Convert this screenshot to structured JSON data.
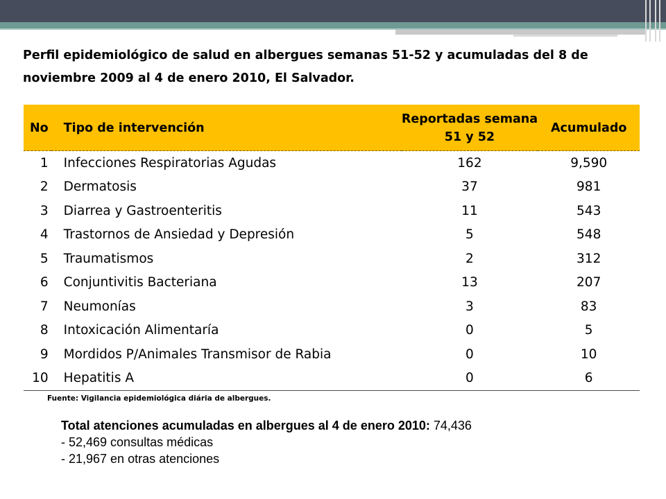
{
  "title": "Perfil epidemiológico de salud en albergues semanas 51-52 y acumuladas del 8 de noviembre 2009 al 4 de enero 2010, El Salvador.",
  "table": {
    "headers": {
      "no": "No",
      "tipo": "Tipo de intervención",
      "reportadas": "Reportadas semana 51 y 52",
      "acumulado": "Acumulado"
    },
    "rows": [
      {
        "no": "1",
        "tipo": "Infecciones Respiratorias Agudas",
        "reportadas": "162",
        "acumulado": "9,590"
      },
      {
        "no": "2",
        "tipo": "Dermatosis",
        "reportadas": "37",
        "acumulado": "981"
      },
      {
        "no": "3",
        "tipo": "Diarrea y Gastroenteritis",
        "reportadas": "11",
        "acumulado": "543"
      },
      {
        "no": "4",
        "tipo": "Trastornos de Ansiedad y Depresión",
        "reportadas": "5",
        "acumulado": "548"
      },
      {
        "no": "5",
        "tipo": "Traumatismos",
        "reportadas": "2",
        "acumulado": "312"
      },
      {
        "no": "6",
        "tipo": "Conjuntivitis Bacteriana",
        "reportadas": "13",
        "acumulado": "207"
      },
      {
        "no": "7",
        "tipo": "Neumonías",
        "reportadas": "3",
        "acumulado": "83"
      },
      {
        "no": "8",
        "tipo": "Intoxicación Alimentaría",
        "reportadas": "0",
        "acumulado": "5"
      },
      {
        "no": "9",
        "tipo": "Mordidos P/Animales Transmisor de Rabia",
        "reportadas": "0",
        "acumulado": "10"
      },
      {
        "no": "10",
        "tipo": "Hepatitis A",
        "reportadas": "0",
        "acumulado": "6"
      }
    ]
  },
  "fuente": "Fuente: Vigilancia epidemiológica diária de albergues.",
  "total": {
    "lead": "Total atenciones acumuladas en albergues al 4 de enero 2010:",
    "value": "74,436",
    "lines": [
      "- 52,469 consultas médicas",
      "- 21,967 en otras atenciones"
    ]
  },
  "colors": {
    "header_bg": "#ffc000",
    "top_band": "#474c5c",
    "teal_accent": "#6f9a94"
  }
}
